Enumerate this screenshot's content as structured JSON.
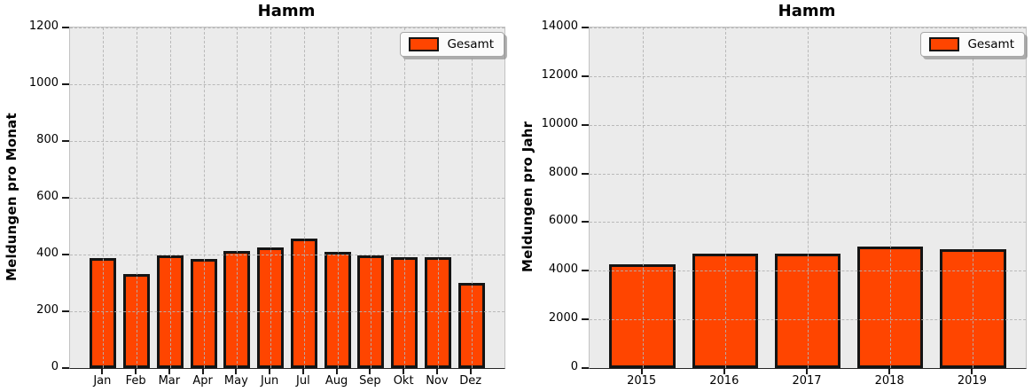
{
  "figure": {
    "background": "#ffffff"
  },
  "colors": {
    "bar_fill": "#ff4500",
    "bar_edge": "#141414",
    "plot_background": "#ebebeb",
    "gridline": "#b4b4b4",
    "text": "#000000",
    "legend_background": "#fbfbfb",
    "legend_border": "#a8a8a8"
  },
  "chart_data": [
    {
      "type": "bar",
      "title": "Hamm",
      "xlabel": "",
      "ylabel": "Meldungen pro Monat",
      "categories": [
        "Jan",
        "Feb",
        "Mar",
        "Apr",
        "May",
        "Jun",
        "Jul",
        "Aug",
        "Sep",
        "Okt",
        "Nov",
        "Dez"
      ],
      "series": [
        {
          "name": "Gesamt",
          "values": [
            386,
            331,
            398,
            385,
            411,
            424,
            457,
            409,
            398,
            392,
            392,
            301
          ]
        }
      ],
      "ylim": [
        0,
        1200
      ],
      "ytick_step": 200,
      "grid": true,
      "grid_style": "dashed",
      "legend_position": "upper right"
    },
    {
      "type": "bar",
      "title": "Hamm",
      "xlabel": "",
      "ylabel": "Meldungen pro Jahr",
      "categories": [
        "2015",
        "2016",
        "2017",
        "2018",
        "2019"
      ],
      "series": [
        {
          "name": "Gesamt",
          "values": [
            4270,
            4710,
            4690,
            5000,
            4890
          ]
        }
      ],
      "ylim": [
        0,
        14000
      ],
      "ytick_step": 2000,
      "grid": true,
      "grid_style": "dashed",
      "legend_position": "upper right"
    }
  ]
}
